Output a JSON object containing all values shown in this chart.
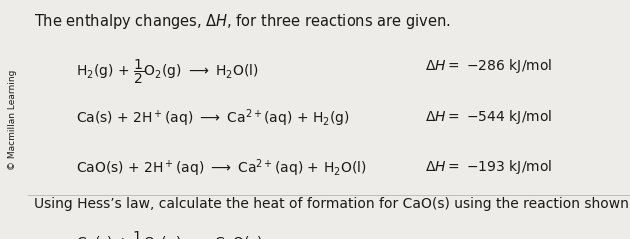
{
  "background_color": "#eeece8",
  "sidebar_color": "#c8c5be",
  "sidebar_text": "© Macmillan Learning",
  "font_size_title": 10.5,
  "font_size_reaction": 10,
  "font_size_question": 10,
  "font_size_sidebar": 6.5,
  "text_color": "#1a1a1a"
}
